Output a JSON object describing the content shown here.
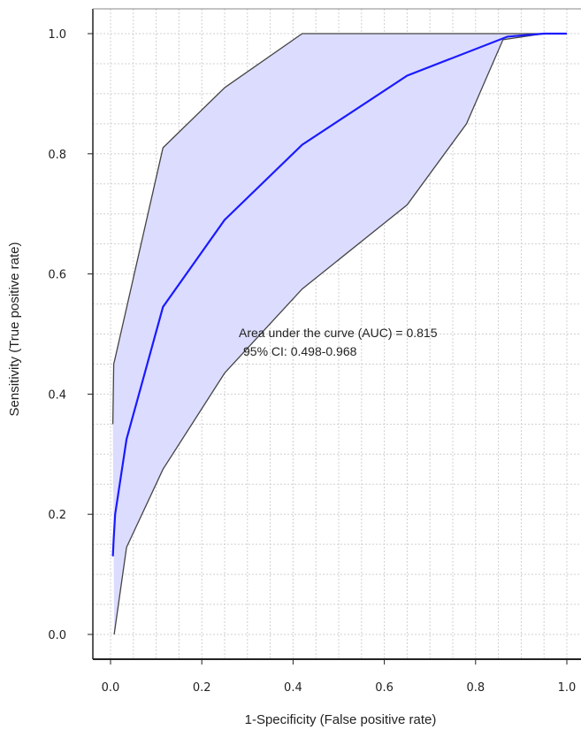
{
  "chart_data": {
    "type": "line",
    "xlabel": "1-Specificity (False positive rate)",
    "ylabel": "Sensitivity (True positive rate)",
    "xlim": [
      0.0,
      1.0
    ],
    "ylim": [
      0.0,
      1.0
    ],
    "x_ticks": [
      "0.0",
      "0.2",
      "0.4",
      "0.6",
      "0.8",
      "1.0"
    ],
    "y_ticks": [
      "0.0",
      "0.2",
      "0.4",
      "0.6",
      "0.8",
      "1.0"
    ],
    "grid": true,
    "annotations": [
      "Area under the curve (AUC) = 0.815",
      "95% CI: 0.498-0.968"
    ],
    "series": [
      {
        "role": "roc",
        "x": [
          0.005,
          0.007,
          0.01,
          0.035,
          0.115,
          0.25,
          0.42,
          0.65,
          0.87,
          0.95,
          1.0
        ],
        "y": [
          0.13,
          0.16,
          0.2,
          0.325,
          0.545,
          0.69,
          0.815,
          0.93,
          0.995,
          1.0,
          1.0
        ]
      },
      {
        "role": "ci_upper",
        "x": [
          0.005,
          0.007,
          0.01,
          0.115,
          0.25,
          0.42,
          0.6,
          0.8,
          1.0
        ],
        "y": [
          0.35,
          0.45,
          0.46,
          0.81,
          0.91,
          1.0,
          1.0,
          1.0,
          1.0
        ]
      },
      {
        "role": "ci_lower",
        "x": [
          0.008,
          0.035,
          0.115,
          0.25,
          0.42,
          0.65,
          0.78,
          0.86,
          0.95,
          1.0
        ],
        "y": [
          0.0,
          0.145,
          0.275,
          0.435,
          0.575,
          0.715,
          0.85,
          0.99,
          1.0,
          1.0
        ]
      }
    ],
    "colors": {
      "roc": "#1a1aff",
      "ci_band": "#dcdcff",
      "ci_border": "#444444",
      "grid": "#d0d0d0",
      "axis": "#222222"
    }
  }
}
